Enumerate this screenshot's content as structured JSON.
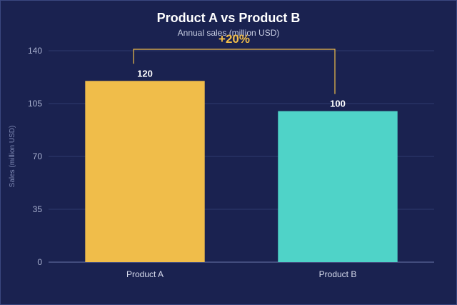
{
  "chart_data": {
    "type": "bar",
    "title": "Product A vs Product B",
    "subtitle": "Annual sales (million USD)",
    "xlabel": "",
    "ylabel": "Sales (million USD)",
    "categories": [
      "Product A",
      "Product B"
    ],
    "values": [
      120,
      100
    ],
    "value_labels": [
      "120",
      "100"
    ],
    "ylim": [
      0,
      140
    ],
    "yticks": [
      0,
      35,
      70,
      105,
      140
    ],
    "ytick_labels": [
      "0",
      "35",
      "70",
      "105",
      "140"
    ],
    "grid": true,
    "legend": "none",
    "bar_colors": [
      "#f0bd4a",
      "#4fd3c8"
    ],
    "annotation": {
      "text": "+20%",
      "from_category": "Product A",
      "to_category": "Product B",
      "color": "#f0bd4a"
    },
    "colors": {
      "background": "#1a2250",
      "grid": "#2f3a6e",
      "axis": "#5a6698"
    }
  }
}
